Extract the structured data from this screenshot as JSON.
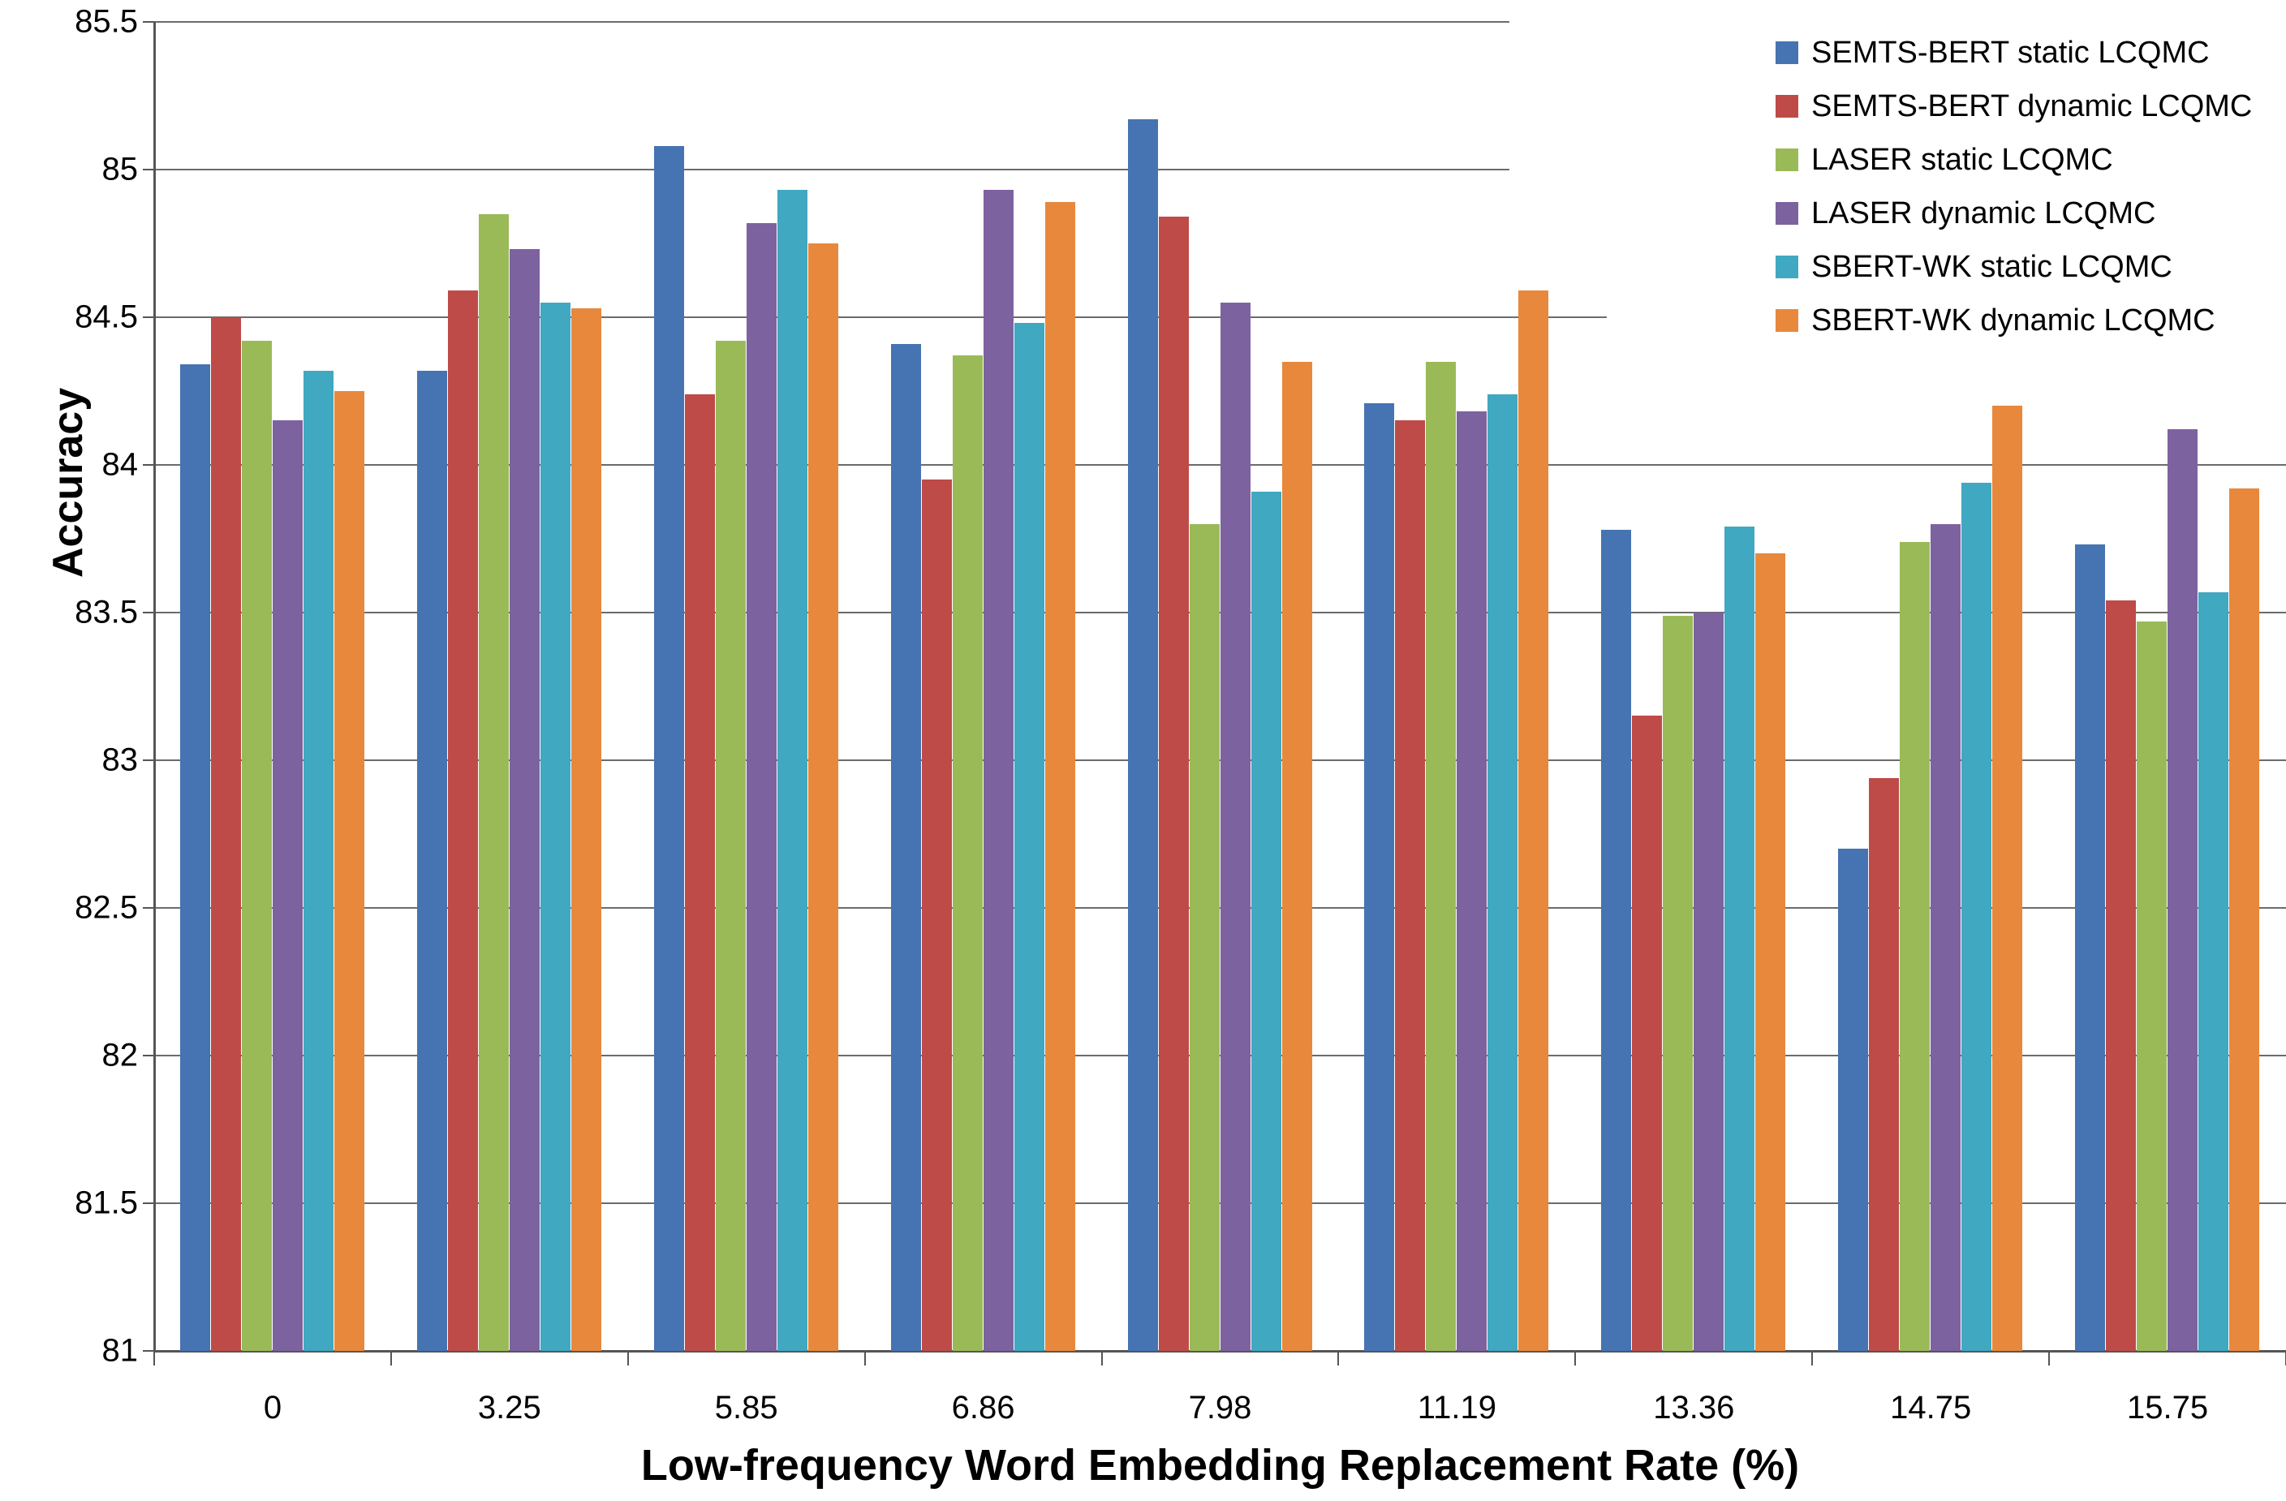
{
  "chart_data": {
    "type": "bar",
    "title": "",
    "xlabel": "Low-frequency Word Embedding Replacement Rate (%)",
    "ylabel": "Accuracy",
    "categories": [
      "0",
      "3.25",
      "5.85",
      "6.86",
      "7.98",
      "11.19",
      "13.36",
      "14.75",
      "15.75"
    ],
    "series": [
      {
        "name": "SEMTS-BERT static LCQMC",
        "color": "#4673B2",
        "values": [
          84.34,
          84.32,
          85.08,
          84.41,
          85.17,
          84.21,
          83.78,
          82.7,
          83.73
        ]
      },
      {
        "name": "SEMTS-BERT dynamic LCQMC",
        "color": "#BE4B48",
        "values": [
          84.5,
          84.59,
          84.24,
          83.95,
          84.84,
          84.15,
          83.15,
          82.94,
          83.54
        ]
      },
      {
        "name": "LASER static LCQMC",
        "color": "#9ABA58",
        "values": [
          84.42,
          84.85,
          84.42,
          84.37,
          83.8,
          84.35,
          83.49,
          83.74,
          83.47
        ]
      },
      {
        "name": "LASER dynamic LCQMC",
        "color": "#7D62A0",
        "values": [
          84.15,
          84.73,
          84.82,
          84.93,
          84.55,
          84.18,
          83.5,
          83.8,
          84.12
        ]
      },
      {
        "name": "SBERT-WK static LCQMC",
        "color": "#40A8C0",
        "values": [
          84.32,
          84.55,
          84.93,
          84.48,
          83.91,
          84.24,
          83.79,
          83.94,
          83.57
        ]
      },
      {
        "name": "SBERT-WK dynamic LCQMC",
        "color": "#E8883D",
        "values": [
          84.25,
          84.53,
          84.75,
          84.89,
          84.35,
          84.59,
          83.7,
          84.2,
          83.92
        ]
      }
    ],
    "ylim": [
      81,
      85.5
    ],
    "yticks": [
      85.5,
      85,
      84.5,
      84,
      83.5,
      83,
      82.5,
      82,
      81.5,
      81
    ],
    "ytick_labels": [
      "85.5",
      "85",
      "84.5",
      "84",
      "83.5",
      "83",
      "82.5",
      "82",
      "81.5",
      "81"
    ],
    "grid": true,
    "legend_position": "top-right"
  }
}
